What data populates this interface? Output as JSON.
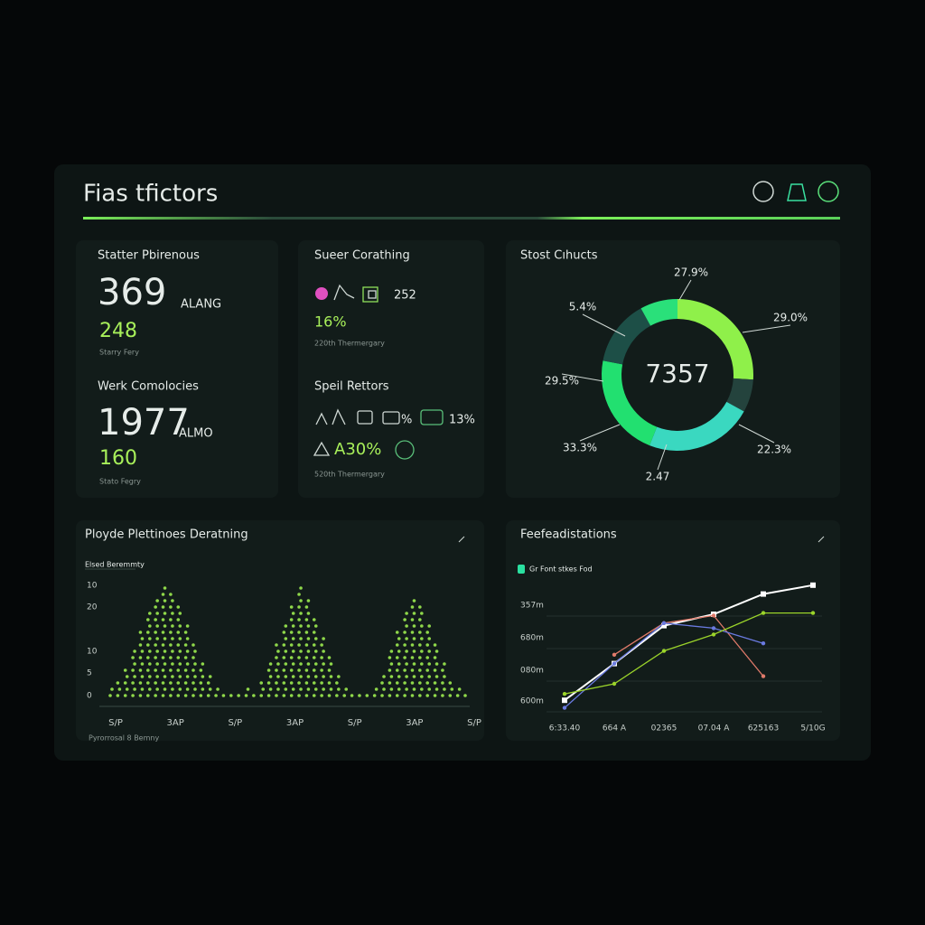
{
  "header": {
    "title": "Fias tfictors"
  },
  "stats_card": {
    "title_1": "Statter Pbirenous",
    "value_1": "369",
    "unit_1": "ALANG",
    "sub_1": "248",
    "note_1": "Starry Fery",
    "title_2": "Werk Comolocies",
    "value_2": "1977",
    "unit_2": "ALMO",
    "sub_2": "160",
    "note_2": "Stato Fegry"
  },
  "rates_card": {
    "title_1": "Sueer Corathing",
    "value_1": "252",
    "sub_1": "16%",
    "note_1": "220th Thermergary",
    "title_2": "Speil Rettors",
    "pct_2": "%",
    "value_2": "13%",
    "sub_2": "A30%",
    "note_2": "520th Thermergary"
  },
  "donut_card": {
    "title": "Stost Cıhucts",
    "center": "7357",
    "segments": [
      {
        "value": 26,
        "color": "#8ff04a"
      },
      {
        "value": 7,
        "color": "#24433d"
      },
      {
        "value": 23,
        "color": "#3ad8c0"
      },
      {
        "value": 22,
        "color": "#22e070"
      },
      {
        "value": 14,
        "color": "#1d4f47"
      },
      {
        "value": 8,
        "color": "#2ae07a"
      }
    ],
    "labels": [
      "27.9%",
      "29.0%",
      "22.3%",
      "2.47",
      "33.3%",
      "29.5%",
      "5.4%"
    ]
  },
  "dots_card": {
    "title": "Ployde Plettinoes Deratning",
    "legend": "Elsed Beremmty",
    "y_labels": [
      "10",
      "20",
      "10",
      "5",
      "0"
    ],
    "x_labels": [
      "S/P",
      "3AP",
      "S/P",
      "3AP",
      "S/P",
      "3AP",
      "S/P"
    ],
    "columns": [
      2,
      3,
      5,
      8,
      11,
      14,
      16,
      18,
      17,
      15,
      12,
      9,
      6,
      4,
      2,
      1,
      1,
      1,
      2,
      1,
      3,
      6,
      9,
      12,
      15,
      18,
      16,
      13,
      10,
      7,
      4,
      2,
      1,
      1,
      1,
      2,
      4,
      8,
      11,
      14,
      16,
      15,
      12,
      9,
      6,
      3,
      2,
      1
    ],
    "color": "#8fd84a",
    "footer": "Pyrorrosal 8 Bemny"
  },
  "lines_card": {
    "title": "Feefeadistations",
    "legend": "Gr Font stkes Fod",
    "legend_color": "#2ae0a0",
    "y_labels": [
      "357m",
      "680m",
      "080m",
      "600m"
    ],
    "x_labels": [
      "6:33.40",
      "664 A",
      "02365",
      "07.04 A",
      "625163",
      "5/10G"
    ],
    "ylim": [
      0,
      100
    ],
    "series": [
      {
        "color": "#ffffff",
        "values": [
          7,
          36,
          66,
          75,
          91,
          98
        ]
      },
      {
        "color": "#e07a6a",
        "values": [
          null,
          43,
          68,
          74,
          26,
          null
        ]
      },
      {
        "color": "#6a7ae0",
        "values": [
          1,
          36,
          68,
          64,
          52,
          null
        ]
      },
      {
        "color": "#9bd42a",
        "values": [
          12,
          20,
          46,
          59,
          76,
          76
        ]
      }
    ]
  }
}
